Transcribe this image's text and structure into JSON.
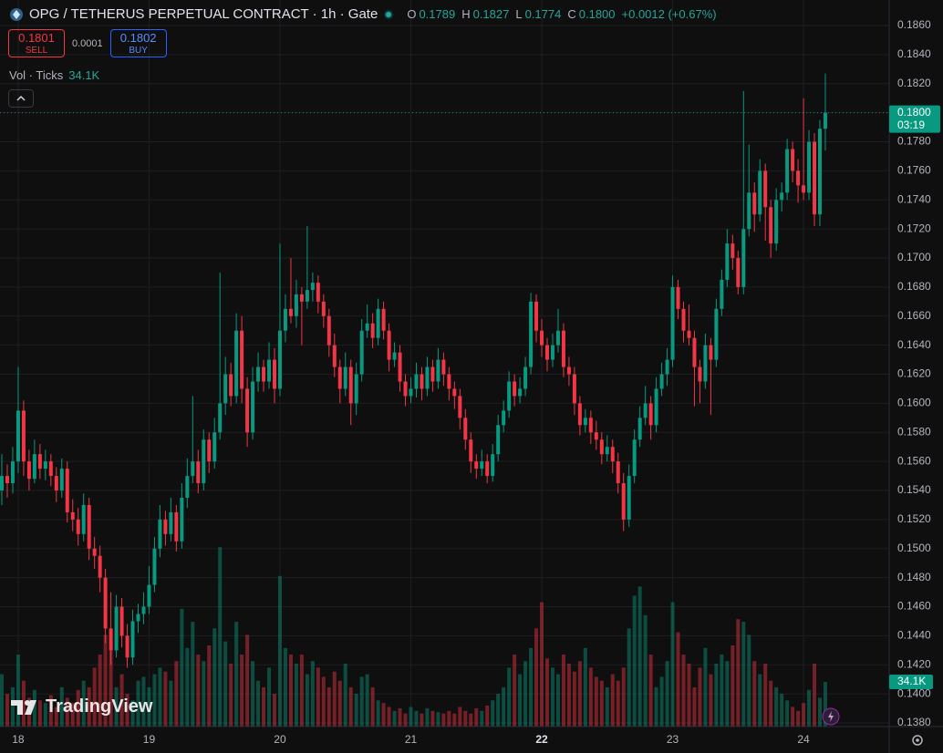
{
  "header": {
    "title": "OPG / TETHERUS PERPETUAL CONTRACT · 1h · Gate",
    "o_key": "O",
    "o": "0.1789",
    "h_key": "H",
    "h": "0.1827",
    "l_key": "L",
    "l": "0.1774",
    "c_key": "C",
    "c": "0.1800",
    "change": "+0.0012 (+0.67%)"
  },
  "trade": {
    "sell_price": "0.1801",
    "sell": "SELL",
    "spread": "0.0001",
    "buy_price": "0.1802",
    "buy": "BUY"
  },
  "volume_legend": {
    "name": "Vol · Ticks",
    "value": "34.1K"
  },
  "watermark": "TradingView",
  "chart_data": {
    "type": "candlestick",
    "up_color": "#089981",
    "down_color": "#f23645",
    "ylim": [
      0.13775,
      0.18776
    ],
    "yticks": [
      {
        "value": 0.138,
        "label": "0.1380"
      },
      {
        "value": 0.14,
        "label": "0.1400"
      },
      {
        "value": 0.142,
        "label": "0.1420"
      },
      {
        "value": 0.144,
        "label": "0.1440"
      },
      {
        "value": 0.146,
        "label": "0.1460"
      },
      {
        "value": 0.148,
        "label": "0.1480"
      },
      {
        "value": 0.15,
        "label": "0.1500"
      },
      {
        "value": 0.152,
        "label": "0.1520"
      },
      {
        "value": 0.154,
        "label": "0.1540"
      },
      {
        "value": 0.156,
        "label": "0.1560"
      },
      {
        "value": 0.158,
        "label": "0.1580"
      },
      {
        "value": 0.16,
        "label": "0.1600"
      },
      {
        "value": 0.162,
        "label": "0.1620"
      },
      {
        "value": 0.164,
        "label": "0.1640"
      },
      {
        "value": 0.166,
        "label": "0.1660"
      },
      {
        "value": 0.168,
        "label": "0.1680"
      },
      {
        "value": 0.17,
        "label": "0.1700"
      },
      {
        "value": 0.172,
        "label": "0.1720"
      },
      {
        "value": 0.174,
        "label": "0.1740"
      },
      {
        "value": 0.176,
        "label": "0.1760"
      },
      {
        "value": 0.178,
        "label": "0.1780"
      },
      {
        "value": 0.18,
        "label": "0.1800"
      },
      {
        "value": 0.182,
        "label": "0.1820"
      },
      {
        "value": 0.184,
        "label": "0.1840"
      },
      {
        "value": 0.186,
        "label": "0.1860"
      }
    ],
    "grid": true,
    "last_price": {
      "value": 0.18,
      "label": "0.1800",
      "countdown": "03:19"
    },
    "volume_ylim": [
      0,
      555
    ],
    "volume_label": {
      "value": 34.1,
      "label": "34.1K"
    },
    "categories": [
      null,
      null,
      null,
      "18",
      null,
      null,
      null,
      null,
      null,
      null,
      null,
      null,
      null,
      null,
      null,
      null,
      null,
      null,
      null,
      null,
      null,
      null,
      null,
      null,
      null,
      null,
      null,
      "19",
      null,
      null,
      null,
      null,
      null,
      null,
      null,
      null,
      null,
      null,
      null,
      null,
      null,
      null,
      null,
      null,
      null,
      null,
      null,
      null,
      null,
      null,
      null,
      "20",
      null,
      null,
      null,
      null,
      null,
      null,
      null,
      null,
      null,
      null,
      null,
      null,
      null,
      null,
      null,
      null,
      null,
      null,
      null,
      null,
      null,
      null,
      null,
      "21",
      null,
      null,
      null,
      null,
      null,
      null,
      null,
      null,
      null,
      null,
      null,
      null,
      null,
      null,
      null,
      null,
      null,
      null,
      null,
      null,
      null,
      null,
      null,
      "22",
      null,
      null,
      null,
      null,
      null,
      null,
      null,
      null,
      null,
      null,
      null,
      null,
      null,
      null,
      null,
      null,
      null,
      null,
      null,
      null,
      null,
      null,
      null,
      "23",
      null,
      null,
      null,
      null,
      null,
      null,
      null,
      null,
      null,
      null,
      null,
      null,
      null,
      null,
      null,
      null,
      null,
      null,
      null,
      null,
      null,
      null,
      null,
      "24",
      null,
      null,
      null,
      null
    ],
    "ohlc": [
      [
        0.154,
        0.1565,
        0.153,
        0.155
      ],
      [
        0.155,
        0.1558,
        0.1535,
        0.1545
      ],
      [
        0.1545,
        0.157,
        0.1538,
        0.156
      ],
      [
        0.156,
        0.1625,
        0.1552,
        0.1595
      ],
      [
        0.1595,
        0.1602,
        0.155,
        0.156
      ],
      [
        0.156,
        0.1568,
        0.154,
        0.1548
      ],
      [
        0.1548,
        0.1575,
        0.1545,
        0.1565
      ],
      [
        0.1565,
        0.1572,
        0.1548,
        0.1555
      ],
      [
        0.1555,
        0.1568,
        0.1547,
        0.156
      ],
      [
        0.156,
        0.1565,
        0.1543,
        0.155
      ],
      [
        0.155,
        0.1556,
        0.1532,
        0.154
      ],
      [
        0.154,
        0.1562,
        0.1535,
        0.1555
      ],
      [
        0.1555,
        0.156,
        0.1518,
        0.1525
      ],
      [
        0.1525,
        0.1534,
        0.1512,
        0.152
      ],
      [
        0.152,
        0.1528,
        0.1502,
        0.151
      ],
      [
        0.151,
        0.1538,
        0.1505,
        0.153
      ],
      [
        0.153,
        0.1535,
        0.1492,
        0.15
      ],
      [
        0.15,
        0.1508,
        0.1486,
        0.1495
      ],
      [
        0.1495,
        0.1502,
        0.147,
        0.148
      ],
      [
        0.148,
        0.1486,
        0.1435,
        0.1445
      ],
      [
        0.1445,
        0.147,
        0.142,
        0.143
      ],
      [
        0.143,
        0.1468,
        0.1425,
        0.146
      ],
      [
        0.146,
        0.1466,
        0.1432,
        0.144
      ],
      [
        0.144,
        0.1448,
        0.1418,
        0.1425
      ],
      [
        0.1425,
        0.1458,
        0.142,
        0.145
      ],
      [
        0.145,
        0.1462,
        0.1442,
        0.1455
      ],
      [
        0.1455,
        0.147,
        0.1448,
        0.146
      ],
      [
        0.146,
        0.1488,
        0.1455,
        0.1475
      ],
      [
        0.1475,
        0.1508,
        0.147,
        0.15
      ],
      [
        0.15,
        0.153,
        0.1494,
        0.152
      ],
      [
        0.152,
        0.1526,
        0.1502,
        0.151
      ],
      [
        0.151,
        0.1535,
        0.1505,
        0.1525
      ],
      [
        0.1525,
        0.153,
        0.1498,
        0.1505
      ],
      [
        0.1505,
        0.1545,
        0.15,
        0.1535
      ],
      [
        0.1535,
        0.1562,
        0.1528,
        0.155
      ],
      [
        0.155,
        0.1605,
        0.1545,
        0.156
      ],
      [
        0.156,
        0.1568,
        0.1538,
        0.1545
      ],
      [
        0.1545,
        0.1582,
        0.154,
        0.1575
      ],
      [
        0.1575,
        0.158,
        0.1552,
        0.156
      ],
      [
        0.156,
        0.159,
        0.1555,
        0.158
      ],
      [
        0.158,
        0.169,
        0.1575,
        0.16
      ],
      [
        0.16,
        0.1632,
        0.1592,
        0.162
      ],
      [
        0.162,
        0.1628,
        0.1598,
        0.1605
      ],
      [
        0.1605,
        0.1662,
        0.16,
        0.165
      ],
      [
        0.165,
        0.166,
        0.16,
        0.161
      ],
      [
        0.161,
        0.1618,
        0.157,
        0.158
      ],
      [
        0.158,
        0.1625,
        0.1575,
        0.1615
      ],
      [
        0.1615,
        0.1635,
        0.1608,
        0.1625
      ],
      [
        0.1625,
        0.163,
        0.1608,
        0.1615
      ],
      [
        0.1615,
        0.1642,
        0.161,
        0.163
      ],
      [
        0.163,
        0.1638,
        0.16,
        0.161
      ],
      [
        0.161,
        0.171,
        0.1605,
        0.165
      ],
      [
        0.165,
        0.1675,
        0.1642,
        0.1665
      ],
      [
        0.1665,
        0.17,
        0.1655,
        0.166
      ],
      [
        0.166,
        0.1685,
        0.1652,
        0.1675
      ],
      [
        0.1675,
        0.168,
        0.164,
        0.167
      ],
      [
        0.167,
        0.1722,
        0.1665,
        0.1678
      ],
      [
        0.1678,
        0.169,
        0.167,
        0.1683
      ],
      [
        0.1683,
        0.1688,
        0.1662,
        0.167
      ],
      [
        0.167,
        0.1675,
        0.1652,
        0.166
      ],
      [
        0.166,
        0.1665,
        0.1632,
        0.164
      ],
      [
        0.164,
        0.1648,
        0.1618,
        0.1625
      ],
      [
        0.1625,
        0.163,
        0.16,
        0.161
      ],
      [
        0.161,
        0.1635,
        0.1605,
        0.1625
      ],
      [
        0.1625,
        0.163,
        0.1585,
        0.16
      ],
      [
        0.16,
        0.1628,
        0.1592,
        0.162
      ],
      [
        0.162,
        0.1658,
        0.1615,
        0.165
      ],
      [
        0.165,
        0.1668,
        0.1645,
        0.1655
      ],
      [
        0.1655,
        0.1662,
        0.1638,
        0.1645
      ],
      [
        0.1645,
        0.1672,
        0.164,
        0.1665
      ],
      [
        0.1665,
        0.167,
        0.1644,
        0.165
      ],
      [
        0.165,
        0.1655,
        0.1622,
        0.163
      ],
      [
        0.163,
        0.1642,
        0.1625,
        0.1635
      ],
      [
        0.1635,
        0.164,
        0.1608,
        0.1615
      ],
      [
        0.1615,
        0.162,
        0.1598,
        0.1605
      ],
      [
        0.1605,
        0.1618,
        0.16,
        0.161
      ],
      [
        0.161,
        0.1628,
        0.1604,
        0.162
      ],
      [
        0.162,
        0.1625,
        0.1602,
        0.161
      ],
      [
        0.161,
        0.1632,
        0.1605,
        0.1625
      ],
      [
        0.1625,
        0.163,
        0.1608,
        0.1615
      ],
      [
        0.1615,
        0.1638,
        0.161,
        0.163
      ],
      [
        0.163,
        0.1635,
        0.1612,
        0.162
      ],
      [
        0.162,
        0.1625,
        0.1602,
        0.161
      ],
      [
        0.161,
        0.1615,
        0.1596,
        0.1605
      ],
      [
        0.1605,
        0.161,
        0.1582,
        0.159
      ],
      [
        0.159,
        0.1596,
        0.1568,
        0.1575
      ],
      [
        0.1575,
        0.158,
        0.1552,
        0.156
      ],
      [
        0.156,
        0.1565,
        0.1548,
        0.1555
      ],
      [
        0.1555,
        0.1568,
        0.155,
        0.156
      ],
      [
        0.156,
        0.1565,
        0.1545,
        0.155
      ],
      [
        0.155,
        0.1572,
        0.1546,
        0.1565
      ],
      [
        0.1565,
        0.1592,
        0.156,
        0.1585
      ],
      [
        0.1585,
        0.1602,
        0.158,
        0.1595
      ],
      [
        0.1595,
        0.1622,
        0.159,
        0.1615
      ],
      [
        0.1615,
        0.162,
        0.1598,
        0.1605
      ],
      [
        0.1605,
        0.1618,
        0.16,
        0.161
      ],
      [
        0.161,
        0.1632,
        0.1605,
        0.1625
      ],
      [
        0.1625,
        0.1676,
        0.162,
        0.167
      ],
      [
        0.167,
        0.1675,
        0.1642,
        0.165
      ],
      [
        0.165,
        0.1658,
        0.1632,
        0.164
      ],
      [
        0.164,
        0.1645,
        0.1622,
        0.163
      ],
      [
        0.163,
        0.1648,
        0.1625,
        0.164
      ],
      [
        0.164,
        0.1665,
        0.1635,
        0.165
      ],
      [
        0.165,
        0.1655,
        0.1618,
        0.1625
      ],
      [
        0.1625,
        0.1632,
        0.1612,
        0.162
      ],
      [
        0.162,
        0.1625,
        0.1592,
        0.16
      ],
      [
        0.16,
        0.1605,
        0.1578,
        0.1585
      ],
      [
        0.1585,
        0.1596,
        0.158,
        0.159
      ],
      [
        0.159,
        0.1595,
        0.1572,
        0.158
      ],
      [
        0.158,
        0.1588,
        0.1568,
        0.1575
      ],
      [
        0.1575,
        0.158,
        0.1558,
        0.1565
      ],
      [
        0.1565,
        0.1578,
        0.156,
        0.157
      ],
      [
        0.157,
        0.1575,
        0.1552,
        0.156
      ],
      [
        0.156,
        0.1566,
        0.1538,
        0.1545
      ],
      [
        0.1545,
        0.1552,
        0.1512,
        0.152
      ],
      [
        0.152,
        0.1558,
        0.1515,
        0.155
      ],
      [
        0.155,
        0.1582,
        0.1545,
        0.1575
      ],
      [
        0.1575,
        0.1598,
        0.157,
        0.159
      ],
      [
        0.159,
        0.1612,
        0.1585,
        0.16
      ],
      [
        0.16,
        0.1605,
        0.1575,
        0.1585
      ],
      [
        0.1585,
        0.1618,
        0.158,
        0.161
      ],
      [
        0.161,
        0.1628,
        0.1605,
        0.162
      ],
      [
        0.162,
        0.1638,
        0.1612,
        0.163
      ],
      [
        0.163,
        0.1688,
        0.1625,
        0.168
      ],
      [
        0.168,
        0.1685,
        0.1658,
        0.1665
      ],
      [
        0.1665,
        0.167,
        0.1642,
        0.165
      ],
      [
        0.165,
        0.1668,
        0.164,
        0.1645
      ],
      [
        0.1645,
        0.165,
        0.1598,
        0.1625
      ],
      [
        0.1625,
        0.163,
        0.16,
        0.1615
      ],
      [
        0.1615,
        0.1648,
        0.161,
        0.164
      ],
      [
        0.164,
        0.1645,
        0.1592,
        0.163
      ],
      [
        0.163,
        0.1672,
        0.1625,
        0.1665
      ],
      [
        0.1665,
        0.1692,
        0.166,
        0.1685
      ],
      [
        0.1685,
        0.172,
        0.168,
        0.171
      ],
      [
        0.171,
        0.1716,
        0.1692,
        0.17
      ],
      [
        0.17,
        0.1705,
        0.1675,
        0.168
      ],
      [
        0.168,
        0.1815,
        0.1675,
        0.172
      ],
      [
        0.172,
        0.1778,
        0.1715,
        0.1745
      ],
      [
        0.1745,
        0.1752,
        0.1718,
        0.173
      ],
      [
        0.173,
        0.1768,
        0.1725,
        0.176
      ],
      [
        0.176,
        0.1765,
        0.1712,
        0.1735
      ],
      [
        0.1735,
        0.174,
        0.17,
        0.171
      ],
      [
        0.171,
        0.1748,
        0.1705,
        0.174
      ],
      [
        0.174,
        0.1752,
        0.1732,
        0.1745
      ],
      [
        0.1745,
        0.1782,
        0.174,
        0.1775
      ],
      [
        0.1775,
        0.178,
        0.1752,
        0.176
      ],
      [
        0.176,
        0.1768,
        0.1738,
        0.175
      ],
      [
        0.175,
        0.181,
        0.174,
        0.1745
      ],
      [
        0.1745,
        0.1788,
        0.174,
        0.178
      ],
      [
        0.178,
        0.1786,
        0.1722,
        0.173
      ],
      [
        0.173,
        0.1795,
        0.1722,
        0.1789
      ],
      [
        0.1789,
        0.1827,
        0.1774,
        0.18
      ]
    ],
    "volume": [
      40,
      25,
      30,
      55,
      35,
      22,
      28,
      20,
      18,
      24,
      15,
      30,
      22,
      18,
      28,
      35,
      30,
      45,
      55,
      70,
      65,
      30,
      40,
      25,
      20,
      35,
      38,
      30,
      40,
      45,
      42,
      35,
      50,
      90,
      60,
      80,
      55,
      50,
      62,
      75,
      137,
      65,
      48,
      80,
      55,
      70,
      50,
      35,
      30,
      45,
      25,
      115,
      60,
      55,
      48,
      55,
      40,
      50,
      45,
      38,
      30,
      42,
      35,
      48,
      30,
      25,
      38,
      40,
      30,
      20,
      18,
      15,
      12,
      14,
      10,
      15,
      12,
      10,
      14,
      12,
      11,
      10,
      12,
      10,
      15,
      12,
      10,
      14,
      12,
      16,
      20,
      25,
      30,
      45,
      55,
      40,
      50,
      60,
      75,
      95,
      52,
      45,
      40,
      55,
      48,
      42,
      50,
      60,
      45,
      38,
      35,
      30,
      40,
      35,
      45,
      75,
      100,
      107,
      85,
      55,
      30,
      38,
      50,
      95,
      72,
      55,
      48,
      30,
      45,
      60,
      40,
      48,
      55,
      50,
      62,
      82,
      80,
      70,
      50,
      40,
      48,
      35,
      30,
      25,
      20,
      15,
      12,
      18,
      28,
      48,
      22,
      34.1
    ]
  }
}
